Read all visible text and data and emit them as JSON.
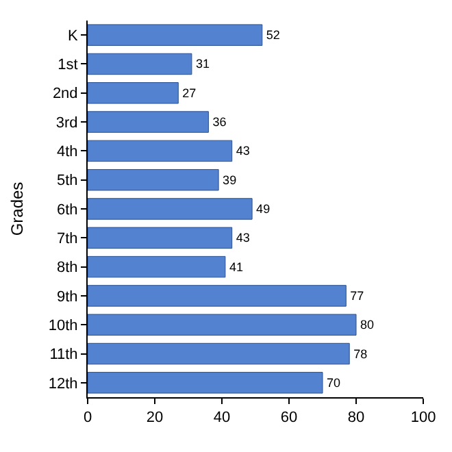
{
  "chart_data": {
    "type": "bar",
    "orientation": "horizontal",
    "ylabel": "Grades",
    "categories": [
      "K",
      "1st",
      "2nd",
      "3rd",
      "4th",
      "5th",
      "6th",
      "7th",
      "8th",
      "9th",
      "10th",
      "11th",
      "12th"
    ],
    "values": [
      52,
      31,
      27,
      36,
      43,
      39,
      49,
      43,
      41,
      77,
      80,
      78,
      70
    ],
    "color": "#5282d0",
    "xlim": [
      0,
      100
    ],
    "xticks": [
      0,
      20,
      40,
      60,
      80,
      100
    ],
    "data_labels": true
  }
}
